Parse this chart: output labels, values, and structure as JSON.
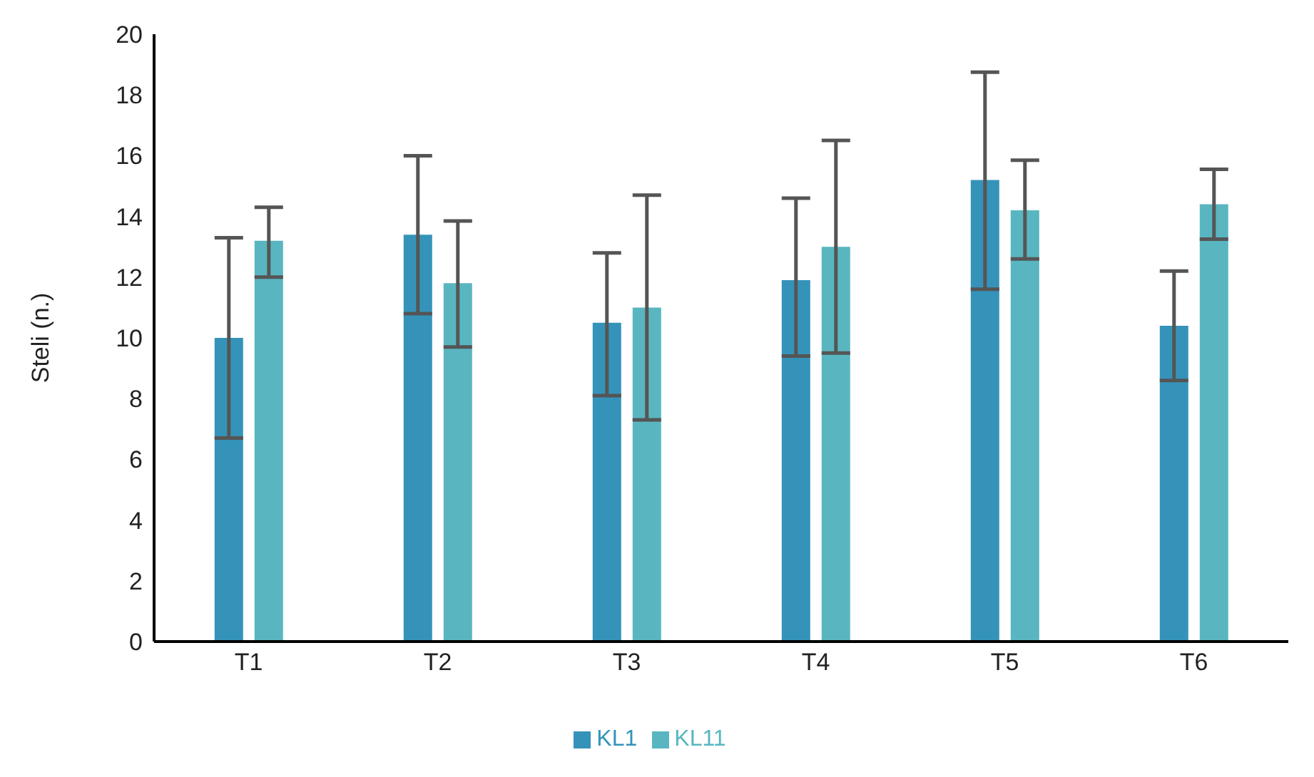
{
  "chart_data": {
    "type": "bar",
    "ylabel": "Steli (n.)",
    "categories": [
      "T1",
      "T2",
      "T3",
      "T4",
      "T5",
      "T6"
    ],
    "series": [
      {
        "name": "KL1",
        "color": "#3593ba",
        "values": [
          10.0,
          13.4,
          10.5,
          11.9,
          15.2,
          10.4
        ],
        "errors": [
          [
            6.7,
            13.3
          ],
          [
            10.8,
            16.0
          ],
          [
            8.1,
            12.8
          ],
          [
            9.4,
            14.6
          ],
          [
            11.6,
            18.75
          ],
          [
            8.6,
            12.2
          ]
        ]
      },
      {
        "name": "KL11",
        "color": "#59b6c0",
        "values": [
          13.2,
          11.8,
          11.0,
          13.0,
          14.2,
          14.4
        ],
        "errors": [
          [
            12.0,
            14.3
          ],
          [
            9.7,
            13.85
          ],
          [
            7.3,
            14.7
          ],
          [
            9.5,
            16.5
          ],
          [
            12.6,
            15.85
          ],
          [
            13.25,
            15.55
          ]
        ]
      }
    ],
    "ylim": [
      0,
      20
    ],
    "yticks": [
      0,
      2,
      4,
      6,
      8,
      10,
      12,
      14,
      16,
      18,
      20
    ],
    "grid": false,
    "legend": "bottom"
  }
}
